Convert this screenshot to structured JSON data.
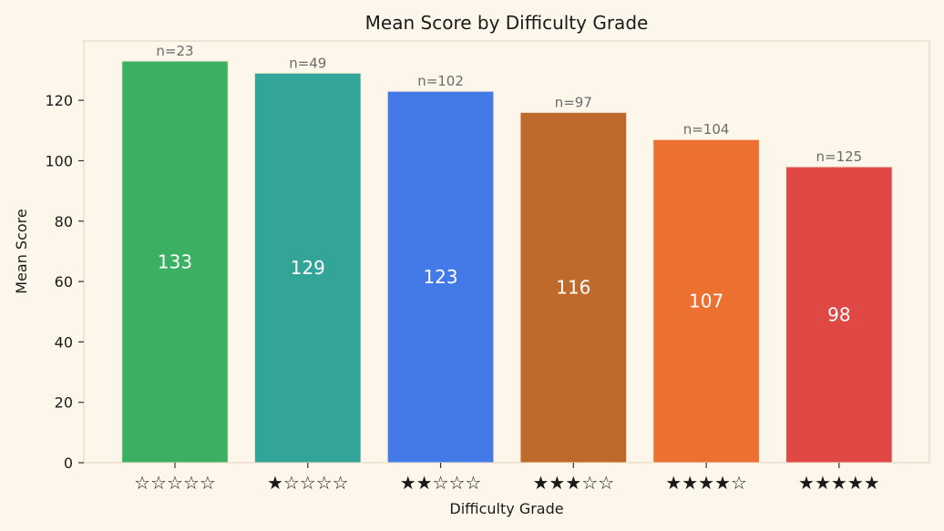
{
  "chart_data": {
    "type": "bar",
    "title": "Mean Score by Difficulty Grade",
    "xlabel": "Difficulty Grade",
    "ylabel": "Mean Score",
    "categories": [
      "☆☆☆☆☆",
      "★☆☆☆☆",
      "★★☆☆☆",
      "★★★☆☆",
      "★★★★☆",
      "★★★★★"
    ],
    "values": [
      133,
      129,
      123,
      116,
      107,
      98
    ],
    "value_labels": [
      "133",
      "129",
      "123",
      "116",
      "107",
      "98"
    ],
    "counts": [
      "n=23",
      "n=49",
      "n=102",
      "n=97",
      "n=104",
      "n=125"
    ],
    "colors": [
      "#3bb063",
      "#32a498",
      "#4479e8",
      "#be6a2c",
      "#ec7030",
      "#e04845"
    ],
    "ylim": [
      0,
      139.65
    ],
    "yticks": [
      0,
      20,
      40,
      60,
      80,
      100,
      120
    ],
    "grid": false,
    "background": "#fdf6ea",
    "spine_color": "#eadfcc"
  }
}
